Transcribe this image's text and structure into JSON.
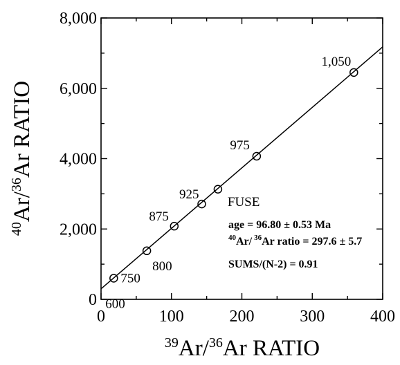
{
  "chart_data": {
    "type": "scatter",
    "title": "",
    "xlabel": {
      "pre_sup": "39",
      "base": "Ar/",
      "mid_sup": "36",
      "rest": "Ar RATIO"
    },
    "ylabel": {
      "pre_sup": "40",
      "base": "Ar/",
      "mid_sup": "36",
      "rest": "Ar RATIO"
    },
    "xlim": [
      0,
      400
    ],
    "ylim": [
      0,
      8000
    ],
    "x_ticks": [
      0,
      100,
      200,
      300,
      400
    ],
    "x_tick_labels": [
      "0",
      "100",
      "200",
      "300",
      "400"
    ],
    "y_ticks": [
      0,
      2000,
      4000,
      6000,
      8000
    ],
    "y_tick_labels": [
      "0",
      "2,000",
      "4,000",
      "6,000",
      "8,000"
    ],
    "grid": false,
    "series": [
      {
        "marker": "open-circle",
        "points": [
          {
            "x": 18,
            "y": 600,
            "label": "750"
          },
          {
            "x": 65,
            "y": 1380,
            "label": "800"
          },
          {
            "x": 104,
            "y": 2080,
            "label": "875"
          },
          {
            "x": 143,
            "y": 2710,
            "label": "925"
          },
          {
            "x": 166,
            "y": 3130,
            "label": "FUSE"
          },
          {
            "x": 221,
            "y": 4070,
            "label": "975"
          },
          {
            "x": 359,
            "y": 6450,
            "label": "1,050"
          }
        ]
      }
    ],
    "fit_line": {
      "slope": 17.2,
      "intercept": 297.6
    },
    "extra_labels": [
      {
        "text": "600",
        "x": 12,
        "y": 150
      }
    ],
    "annotations": {
      "age": "age = 96.80 ± 0.53 Ma",
      "ratio_sup1": "40",
      "ratio_mid": "Ar/",
      "ratio_sup2": "36",
      "ratio_rest": "Ar ratio = 297.6 ± 5.7",
      "sums": "SUMS/(N-2) = 0.91"
    }
  }
}
